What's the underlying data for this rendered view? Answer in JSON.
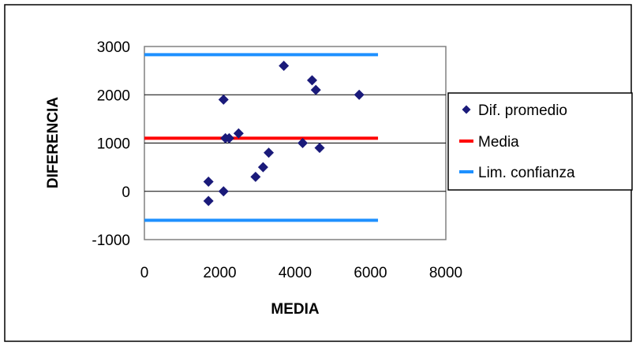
{
  "chart_data": {
    "type": "scatter",
    "title": "",
    "xlabel": "MEDIA",
    "ylabel": "DIFERENCIA",
    "xlim": [
      0,
      8000
    ],
    "ylim": [
      -1000,
      3000
    ],
    "xticks": [
      0,
      2000,
      4000,
      6000,
      8000
    ],
    "yticks": [
      3000,
      2000,
      1000,
      0,
      -1000
    ],
    "grid": "horizontal",
    "legend_position": "right",
    "series": [
      {
        "name": "Dif. promedio",
        "kind": "scatter",
        "marker": "diamond",
        "color": "#1a1a7a",
        "points": [
          {
            "x": 1700,
            "y": 200
          },
          {
            "x": 1700,
            "y": -200
          },
          {
            "x": 2100,
            "y": 0
          },
          {
            "x": 2100,
            "y": 1900
          },
          {
            "x": 2150,
            "y": 1100
          },
          {
            "x": 2250,
            "y": 1100
          },
          {
            "x": 2500,
            "y": 1200
          },
          {
            "x": 2950,
            "y": 300
          },
          {
            "x": 3150,
            "y": 500
          },
          {
            "x": 3300,
            "y": 800
          },
          {
            "x": 3700,
            "y": 2600
          },
          {
            "x": 4200,
            "y": 1000
          },
          {
            "x": 4450,
            "y": 2300
          },
          {
            "x": 4550,
            "y": 2100
          },
          {
            "x": 4650,
            "y": 900
          },
          {
            "x": 5700,
            "y": 2000
          }
        ]
      },
      {
        "name": "Media",
        "kind": "hline",
        "color": "#ff0000",
        "y": 1100,
        "x_range": [
          0,
          6200
        ]
      },
      {
        "name": "Lim. confianza",
        "kind": "hline",
        "color": "#1e90ff",
        "y_values": [
          2830,
          -600
        ],
        "x_range": [
          0,
          6200
        ]
      }
    ]
  }
}
